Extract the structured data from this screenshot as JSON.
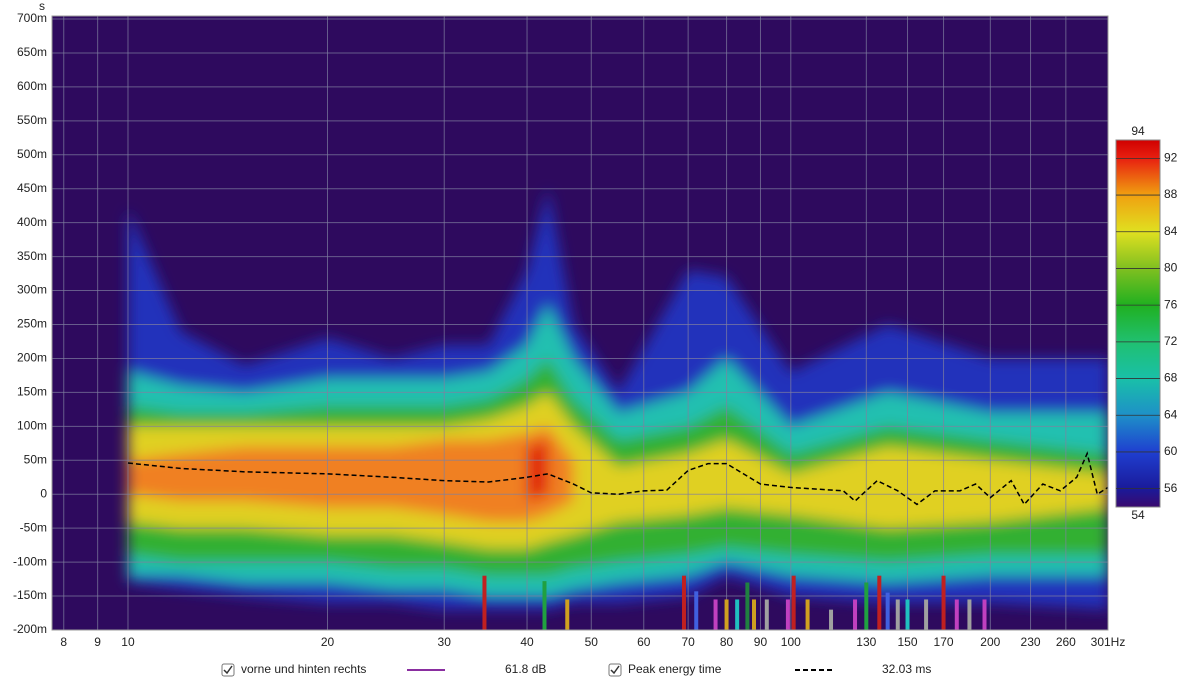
{
  "chart_data": {
    "type": "spectrogram",
    "y_axis_label": "s",
    "xlog": true,
    "xlim": [
      7.68,
      301
    ],
    "xticks": [
      8,
      9,
      10,
      20,
      30,
      40,
      50,
      60,
      70,
      80,
      90,
      100,
      130,
      150,
      170,
      200,
      230,
      260,
      {
        "value": 301,
        "label": "301Hz"
      }
    ],
    "ylim": [
      -0.2,
      0.7
    ],
    "yticks": [
      {
        "value": 0.7,
        "label": "700m"
      },
      {
        "value": 0.65,
        "label": "650m"
      },
      {
        "value": 0.6,
        "label": "600m"
      },
      {
        "value": 0.55,
        "label": "550m"
      },
      {
        "value": 0.5,
        "label": "500m"
      },
      {
        "value": 0.45,
        "label": "450m"
      },
      {
        "value": 0.4,
        "label": "400m"
      },
      {
        "value": 0.35,
        "label": "350m"
      },
      {
        "value": 0.3,
        "label": "300m"
      },
      {
        "value": 0.25,
        "label": "250m"
      },
      {
        "value": 0.2,
        "label": "200m"
      },
      {
        "value": 0.15,
        "label": "150m"
      },
      {
        "value": 0.1,
        "label": "100m"
      },
      {
        "value": 0.05,
        "label": "50m"
      },
      0,
      {
        "value": -0.05,
        "label": "-50m"
      },
      {
        "value": -0.1,
        "label": "-100m"
      },
      {
        "value": -0.15,
        "label": "-150m"
      },
      {
        "value": -0.2,
        "label": "-200m"
      }
    ],
    "grid": true,
    "background": "#2e0a5e",
    "colorbar": {
      "lim": [
        54,
        94
      ],
      "ticks": [
        56,
        60,
        64,
        68,
        72,
        76,
        80,
        84,
        88,
        92
      ],
      "stops": [
        [
          54,
          "#3a0a6e"
        ],
        [
          56,
          "#1a1a9a"
        ],
        [
          60,
          "#1f3fd0"
        ],
        [
          64,
          "#1e90c8"
        ],
        [
          68,
          "#19c0a8"
        ],
        [
          72,
          "#20c070"
        ],
        [
          76,
          "#20b020"
        ],
        [
          80,
          "#80c020"
        ],
        [
          84,
          "#e0e020"
        ],
        [
          88,
          "#f0a010"
        ],
        [
          92,
          "#e82010"
        ],
        [
          94,
          "#d00000"
        ]
      ]
    },
    "contours": {
      "x": [
        10,
        12,
        15,
        20,
        25,
        30,
        35,
        40,
        43,
        47,
        55,
        70,
        80,
        100,
        140,
        200,
        301
      ],
      "levels": [
        {
          "level": 56,
          "color": "#2233bb",
          "top": [
            0.42,
            0.24,
            0.19,
            0.23,
            0.2,
            0.22,
            0.22,
            0.33,
            0.45,
            0.25,
            0.15,
            0.33,
            0.32,
            0.18,
            0.25,
            0.2,
            0.2
          ],
          "bottom": [
            -0.13,
            -0.14,
            -0.15,
            -0.16,
            -0.16,
            -0.17,
            -0.17,
            -0.17,
            -0.17,
            -0.16,
            -0.16,
            -0.15,
            -0.12,
            -0.15,
            -0.16,
            -0.16,
            -0.17
          ]
        },
        {
          "level": 68,
          "color": "#20c0b0",
          "top": [
            0.18,
            0.16,
            0.15,
            0.17,
            0.17,
            0.17,
            0.18,
            0.22,
            0.28,
            0.2,
            0.12,
            0.15,
            0.2,
            0.1,
            0.15,
            0.12,
            0.12
          ],
          "bottom": [
            -0.12,
            -0.12,
            -0.13,
            -0.13,
            -0.14,
            -0.14,
            -0.15,
            -0.15,
            -0.15,
            -0.14,
            -0.13,
            -0.12,
            -0.1,
            -0.12,
            -0.13,
            -0.12,
            -0.12
          ]
        },
        {
          "level": 76,
          "color": "#30b030",
          "top": [
            0.13,
            0.12,
            0.12,
            0.13,
            0.13,
            0.13,
            0.14,
            0.17,
            0.2,
            0.14,
            0.08,
            0.1,
            0.13,
            0.06,
            0.1,
            0.08,
            0.06
          ],
          "bottom": [
            -0.09,
            -0.1,
            -0.1,
            -0.1,
            -0.11,
            -0.11,
            -0.12,
            -0.12,
            -0.12,
            -0.11,
            -0.1,
            -0.09,
            -0.08,
            -0.09,
            -0.1,
            -0.09,
            -0.09
          ]
        },
        {
          "level": 84,
          "color": "#e0d020",
          "top": [
            0.1,
            0.1,
            0.1,
            0.1,
            0.1,
            0.1,
            0.11,
            0.13,
            0.15,
            0.1,
            0.04,
            0.06,
            0.08,
            0.03,
            0.07,
            0.05,
            0.03
          ],
          "bottom": [
            -0.04,
            -0.05,
            -0.05,
            -0.06,
            -0.06,
            -0.07,
            -0.08,
            -0.08,
            -0.07,
            -0.06,
            -0.04,
            -0.03,
            -0.02,
            -0.03,
            -0.05,
            -0.04,
            -0.02
          ]
        },
        {
          "level": 88,
          "color": "#f08020",
          "top": [
            0.05,
            0.06,
            0.07,
            0.07,
            0.07,
            0.08,
            0.08,
            0.09,
            0.1,
            0.05,
            null,
            null,
            null,
            null,
            null,
            null,
            null
          ],
          "bottom": [
            0,
            -0.01,
            -0.01,
            -0.02,
            -0.02,
            -0.03,
            -0.04,
            -0.04,
            -0.03,
            -0.01,
            null,
            null,
            null,
            null,
            null,
            null,
            null
          ]
        },
        {
          "level": 92,
          "color": "#e02010",
          "top": [
            null,
            null,
            null,
            null,
            null,
            null,
            null,
            0.07,
            0.08,
            null,
            null,
            null,
            null,
            null,
            null,
            null,
            null
          ],
          "bottom": [
            null,
            null,
            null,
            null,
            null,
            null,
            null,
            -0.01,
            0,
            null,
            null,
            null,
            null,
            null,
            null,
            null,
            null
          ]
        }
      ]
    },
    "peak_energy": {
      "name": "Peak energy time",
      "color": "#000000",
      "x": [
        10,
        12,
        15,
        20,
        25,
        30,
        35,
        40,
        43,
        47,
        50,
        55,
        60,
        65,
        70,
        75,
        80,
        90,
        100,
        120,
        125,
        135,
        145,
        155,
        165,
        180,
        190,
        200,
        215,
        225,
        240,
        255,
        270,
        280,
        290,
        301
      ],
      "values": [
        0.046,
        0.038,
        0.033,
        0.03,
        0.025,
        0.02,
        0.018,
        0.025,
        0.03,
        0.015,
        0.002,
        0,
        0.005,
        0.006,
        0.035,
        0.045,
        0.045,
        0.015,
        0.01,
        0.005,
        -0.01,
        0.02,
        0.005,
        -0.015,
        0.005,
        0.005,
        0.015,
        -0.005,
        0.02,
        -0.015,
        0.015,
        0.005,
        0.025,
        0.06,
        0,
        0.01
      ]
    },
    "markers": {
      "x": [
        34.5,
        42.5,
        46,
        69,
        72,
        77,
        80,
        83,
        86,
        88,
        92,
        99,
        101,
        106,
        115,
        125,
        130,
        136,
        140,
        145,
        150,
        160,
        170,
        178,
        186,
        196
      ],
      "top": [
        -0.12,
        -0.128,
        -0.155,
        -0.12,
        -0.143,
        -0.155,
        -0.155,
        -0.155,
        -0.13,
        -0.155,
        -0.155,
        -0.155,
        -0.12,
        -0.155,
        -0.17,
        -0.155,
        -0.13,
        -0.12,
        -0.145,
        -0.155,
        -0.155,
        -0.155,
        -0.12,
        -0.155,
        -0.155,
        -0.155
      ],
      "colors": [
        "#c02020",
        "#20a040",
        "#d0a020",
        "#c02020",
        "#4060e0",
        "#c040c0",
        "#d0a020",
        "#20c0c0",
        "#208040",
        "#d0a020",
        "#a0a0a0",
        "#c040c0",
        "#c02020",
        "#d0a020",
        "#a0a0a0",
        "#c040c0",
        "#20a040",
        "#c02020",
        "#4060e0",
        "#a0a0a0",
        "#20c0c0",
        "#a0a0a0",
        "#c02020",
        "#c040c0",
        "#a0a0a0",
        "#c040c0"
      ]
    },
    "legend": [
      {
        "label": "vorne und hinten rechts",
        "color": "#8a2ea0",
        "value": "61.8 dB"
      },
      {
        "label": "Peak energy time",
        "color": "#000000",
        "value": "32.03 ms"
      }
    ]
  }
}
